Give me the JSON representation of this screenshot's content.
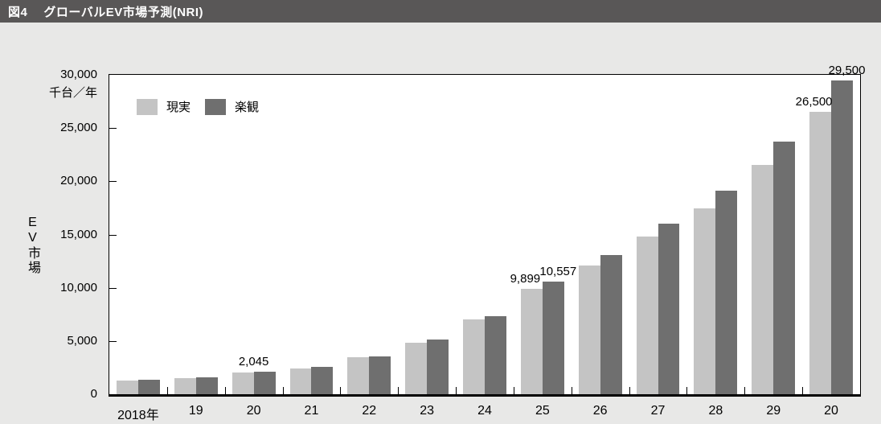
{
  "header": {
    "figure_label": "図4",
    "title": "グローバルEV市場予測(NRI)"
  },
  "colors": {
    "title_bar_bg": "#595757",
    "title_text": "#ffffff",
    "page_bg": "#e8e8e7",
    "plot_bg": "#ffffff",
    "axis": "#000000",
    "real_bar": "#c4c4c4",
    "opt_bar": "#6f6f6f",
    "label_text": "#000000"
  },
  "chart_data": {
    "type": "bar",
    "title": "グローバルEV市場予測(NRI)",
    "unit_label": "千台／年",
    "y_axis_title": "EV市場",
    "categories": [
      "2018年",
      "19",
      "20",
      "21",
      "22",
      "23",
      "24",
      "25",
      "26",
      "27",
      "28",
      "29",
      "20"
    ],
    "series": [
      {
        "key": "real",
        "name": "現実",
        "color": "#c4c4c4",
        "values": [
          1300,
          1500,
          2045,
          2400,
          3450,
          4800,
          7000,
          9899,
          12100,
          14800,
          17450,
          21500,
          26500
        ]
      },
      {
        "key": "opt",
        "name": "楽観",
        "color": "#6f6f6f",
        "values": [
          1350,
          1600,
          2100,
          2550,
          3550,
          5150,
          7350,
          10557,
          13100,
          16050,
          19150,
          23700,
          29500
        ]
      }
    ],
    "ylim": [
      0,
      30000
    ],
    "y_tick_step": 5000,
    "y_tick_labels": [
      "30,000",
      "25,000",
      "20,000",
      "15,000",
      "10,000",
      "5,000",
      "0"
    ],
    "bar_labels": [
      {
        "index": 2,
        "series": "pair",
        "text": "2,045"
      },
      {
        "index": 7,
        "series": "real",
        "text": "9,899"
      },
      {
        "index": 7,
        "series": "opt",
        "text": "10,557"
      },
      {
        "index": 12,
        "series": "real",
        "text": "26,500"
      },
      {
        "index": 12,
        "series": "opt",
        "text": "29,500"
      }
    ],
    "legend_position": "top-left-inside",
    "grid": false
  }
}
